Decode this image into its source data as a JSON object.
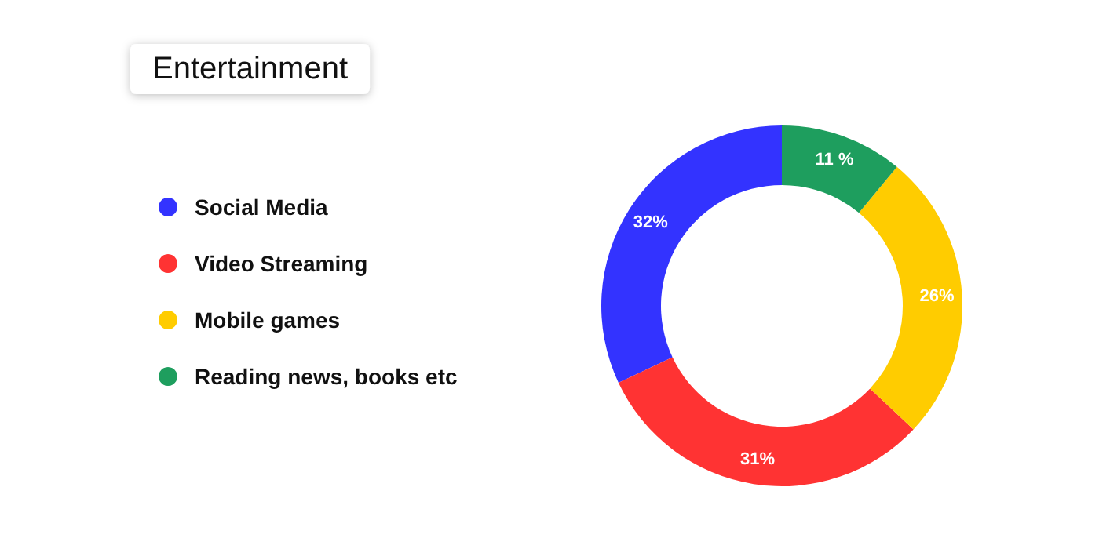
{
  "chart_data": {
    "type": "donut",
    "title": "Entertainment",
    "categories": [
      "Social Media",
      "Video Streaming",
      "Mobile games",
      "Reading news, books etc"
    ],
    "values": [
      32,
      31,
      26,
      11
    ],
    "colors": [
      "#3333ff",
      "#ff3333",
      "#ffcc00",
      "#1e9e5e"
    ],
    "value_labels": [
      "32%",
      "31%",
      "26%",
      "11 %"
    ],
    "legend": "left"
  }
}
